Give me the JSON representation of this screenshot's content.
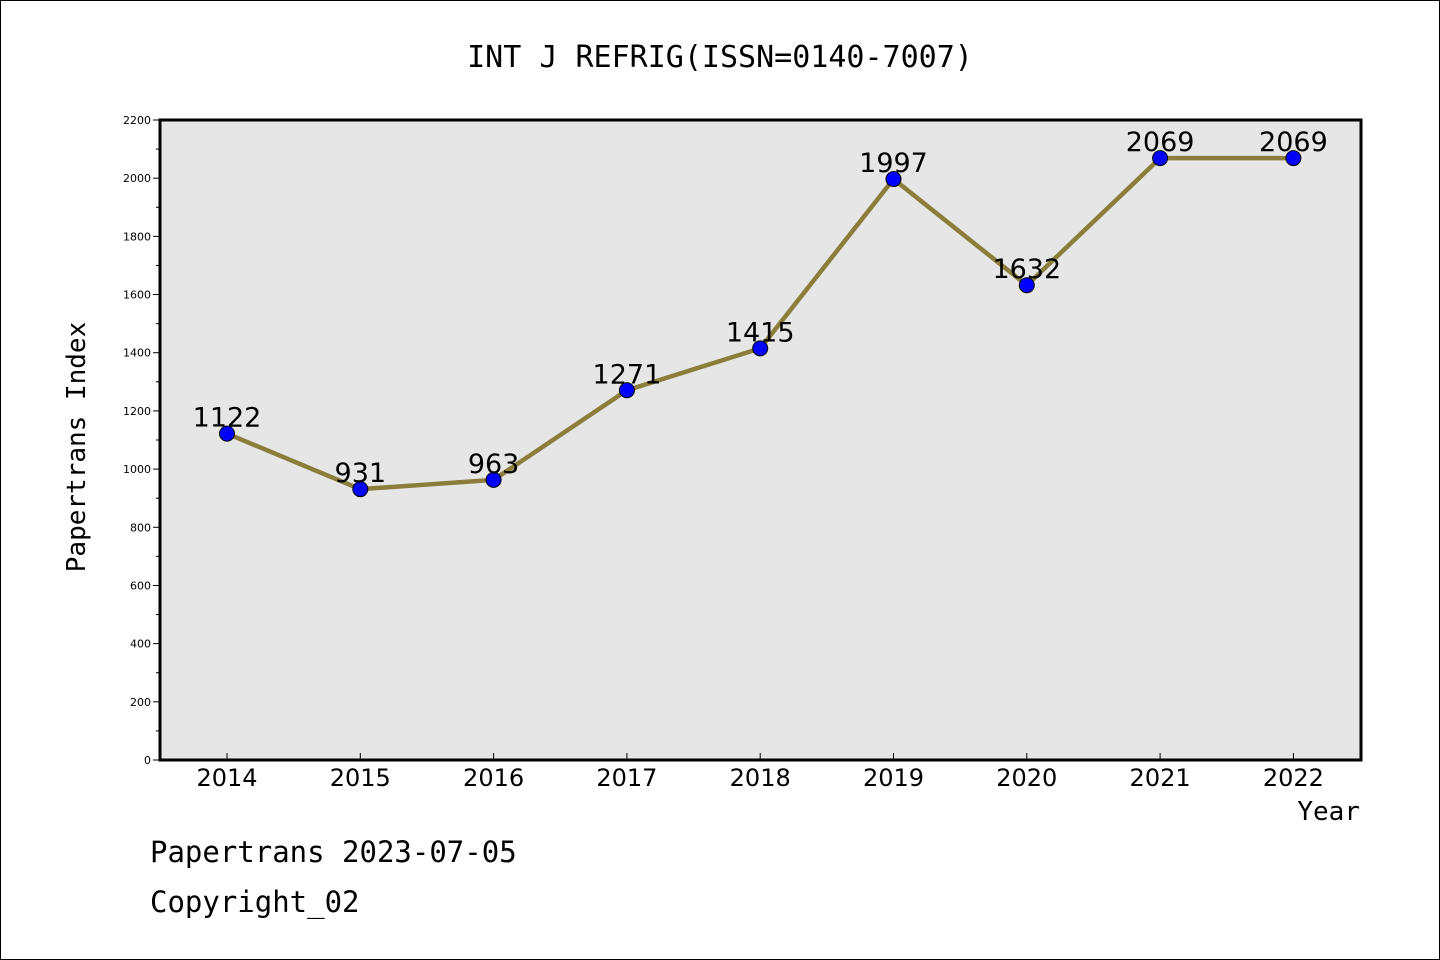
{
  "chart_data": {
    "type": "line",
    "title": "INT J REFRIG(ISSN=0140-7007)",
    "xlabel": "Year",
    "ylabel": "Papertrans Index",
    "categories": [
      "2014",
      "2015",
      "2016",
      "2017",
      "2018",
      "2019",
      "2020",
      "2021",
      "2022"
    ],
    "values": [
      1122,
      931,
      963,
      1271,
      1415,
      1997,
      1632,
      2069,
      2069
    ],
    "data_labels": [
      "1122",
      "931",
      "963",
      "1271",
      "1415",
      "1997",
      "1632",
      "2069",
      "2069"
    ],
    "ylim": [
      0,
      2200
    ],
    "yticks": [
      0,
      200,
      400,
      600,
      800,
      1000,
      1200,
      1400,
      1600,
      1800,
      2000,
      2200
    ],
    "grid": false,
    "legend": "none",
    "colors": {
      "line": "#8b7d3a",
      "marker": "#0000ff",
      "plot_background": "#e6e6e6"
    }
  },
  "footer": {
    "line1": "Papertrans 2023-07-05",
    "line2": "Copyright_02"
  }
}
